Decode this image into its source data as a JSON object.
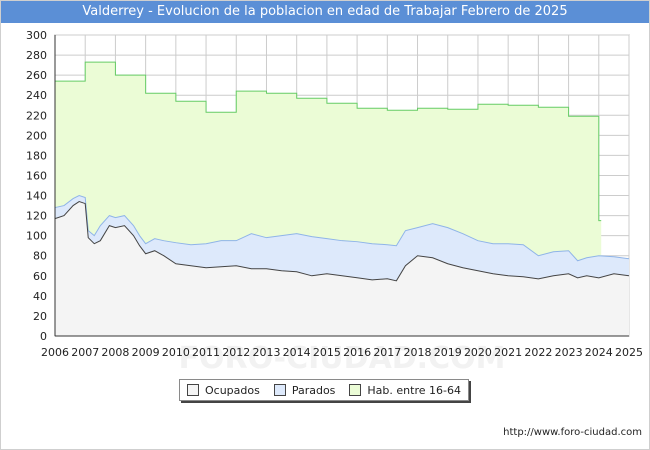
{
  "header": {
    "title": "Valderrey - Evolucion de la poblacion en edad de Trabajar Febrero de 2025"
  },
  "watermark": "FORO-CIUDAD.COM",
  "footer": {
    "url": "http://www.foro-ciudad.com"
  },
  "colors": {
    "title_bg": "#5b8fd6",
    "hab_fill": "#ebfcd6",
    "hab_line": "#66cc66",
    "parados_fill": "#dde9fb",
    "parados_line": "#8fb4e8",
    "ocupados_fill": "#f4f4f4",
    "ocupados_line": "#444444",
    "grid": "#cccccc"
  },
  "legend": {
    "items": [
      {
        "label": "Ocupados",
        "color": "#f4f4f4"
      },
      {
        "label": "Parados",
        "color": "#dde9fb"
      },
      {
        "label": "Hab. entre 16-64",
        "color": "#ebfcd6"
      }
    ]
  },
  "chart_data": {
    "type": "area",
    "title": "Valderrey - Evolucion de la poblacion en edad de Trabajar Febrero de 2025",
    "xlabel": "",
    "ylabel": "",
    "xlim": [
      2006,
      2025
    ],
    "ylim": [
      0,
      300
    ],
    "xticks": [
      2006,
      2007,
      2008,
      2009,
      2010,
      2011,
      2012,
      2013,
      2014,
      2015,
      2016,
      2017,
      2018,
      2019,
      2020,
      2021,
      2022,
      2023,
      2024,
      2025
    ],
    "yticks": [
      0,
      20,
      40,
      60,
      80,
      100,
      120,
      140,
      160,
      180,
      200,
      220,
      240,
      260,
      280,
      300
    ],
    "grid": true,
    "legend_position": "bottom",
    "series": [
      {
        "name": "Hab. entre 16-64",
        "step": true,
        "x": [
          2006,
          2007,
          2008,
          2009,
          2010,
          2011,
          2012,
          2013,
          2014,
          2015,
          2016,
          2017,
          2018,
          2019,
          2020,
          2021,
          2022,
          2023,
          2024
        ],
        "values": [
          254,
          273,
          260,
          242,
          234,
          223,
          244,
          242,
          237,
          232,
          227,
          225,
          227,
          226,
          231,
          230,
          228,
          219,
          115
        ],
        "x_end": 2024.08
      },
      {
        "name": "Parados",
        "x": [
          2006,
          2006.3,
          2006.6,
          2006.8,
          2007,
          2007.1,
          2007.3,
          2007.5,
          2007.8,
          2008,
          2008.3,
          2008.6,
          2008.8,
          2009,
          2009.3,
          2009.6,
          2010,
          2010.5,
          2011,
          2011.5,
          2012,
          2012.5,
          2013,
          2013.5,
          2014,
          2014.5,
          2015,
          2015.5,
          2016,
          2016.5,
          2017,
          2017.3,
          2017.6,
          2018,
          2018.5,
          2019,
          2019.5,
          2020,
          2020.5,
          2021,
          2021.5,
          2022,
          2022.5,
          2023,
          2023.3,
          2023.6,
          2024,
          2024.5,
          2025
        ],
        "values": [
          128,
          130,
          137,
          140,
          138,
          105,
          100,
          110,
          120,
          118,
          120,
          110,
          100,
          92,
          97,
          95,
          93,
          91,
          92,
          95,
          95,
          102,
          98,
          100,
          102,
          99,
          97,
          95,
          94,
          92,
          91,
          90,
          105,
          108,
          112,
          108,
          102,
          95,
          92,
          92,
          91,
          80,
          84,
          85,
          75,
          78,
          80,
          79,
          77
        ]
      },
      {
        "name": "Ocupados",
        "x": [
          2006,
          2006.3,
          2006.6,
          2006.8,
          2007,
          2007.1,
          2007.3,
          2007.5,
          2007.8,
          2008,
          2008.3,
          2008.6,
          2008.8,
          2009,
          2009.3,
          2009.6,
          2010,
          2010.5,
          2011,
          2011.5,
          2012,
          2012.5,
          2013,
          2013.5,
          2014,
          2014.5,
          2015,
          2015.5,
          2016,
          2016.5,
          2017,
          2017.3,
          2017.6,
          2018,
          2018.5,
          2019,
          2019.5,
          2020,
          2020.5,
          2021,
          2021.5,
          2022,
          2022.5,
          2023,
          2023.3,
          2023.6,
          2024,
          2024.5,
          2025
        ],
        "values": [
          117,
          120,
          130,
          134,
          132,
          98,
          92,
          95,
          110,
          108,
          110,
          100,
          90,
          82,
          85,
          80,
          72,
          70,
          68,
          69,
          70,
          67,
          67,
          65,
          64,
          60,
          62,
          60,
          58,
          56,
          57,
          55,
          70,
          80,
          78,
          72,
          68,
          65,
          62,
          60,
          59,
          57,
          60,
          62,
          58,
          60,
          58,
          62,
          60
        ]
      }
    ]
  }
}
